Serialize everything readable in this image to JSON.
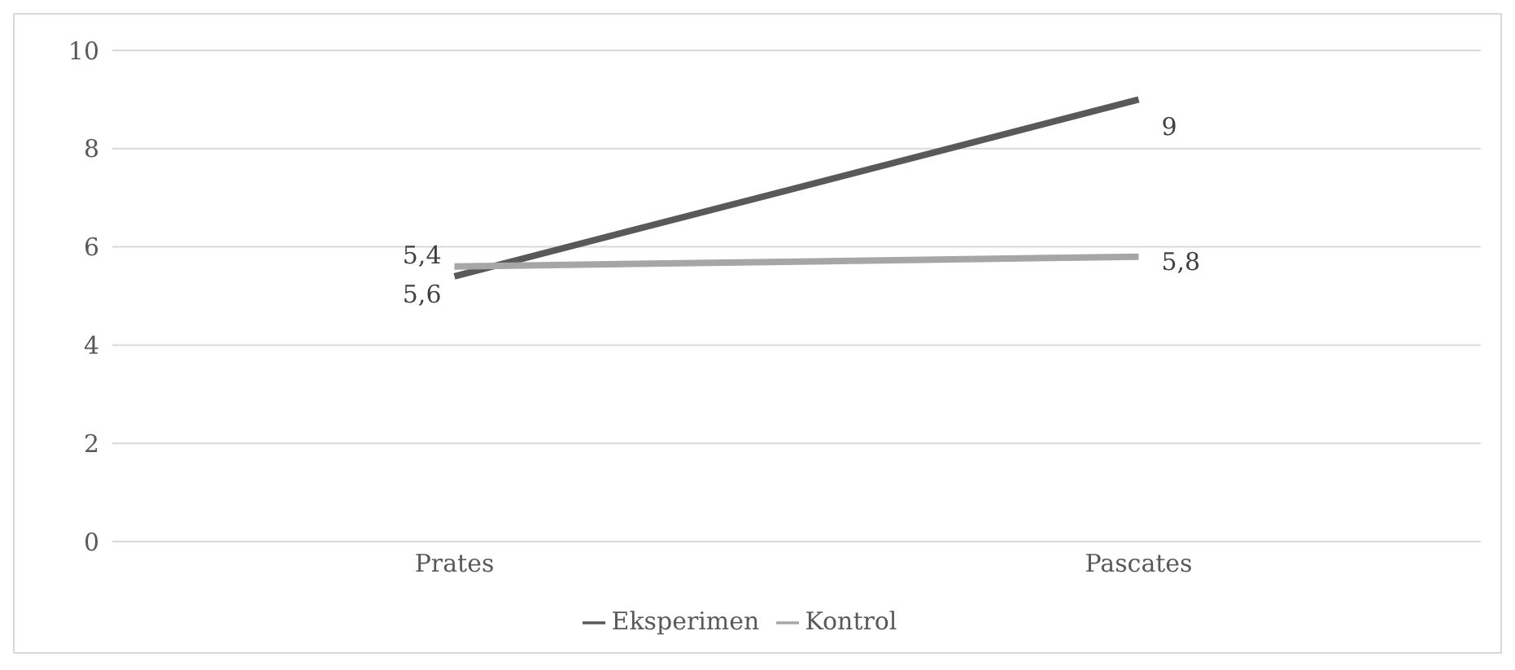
{
  "chart_data": {
    "type": "line",
    "categories": [
      "Prates",
      "Pascates"
    ],
    "series": [
      {
        "name": "Eksperimen",
        "color": "#595959",
        "values": [
          5.4,
          9
        ],
        "value_labels": [
          "5,4",
          "9"
        ]
      },
      {
        "name": "Kontrol",
        "color": "#a6a6a6",
        "values": [
          5.6,
          5.8
        ],
        "value_labels": [
          "5,6",
          "5,8"
        ]
      }
    ],
    "ylim": [
      0,
      10
    ],
    "yticks": [
      0,
      2,
      4,
      6,
      8,
      10
    ],
    "grid": "y",
    "legend": "bottom",
    "marker": "none",
    "line_style": "solid"
  }
}
